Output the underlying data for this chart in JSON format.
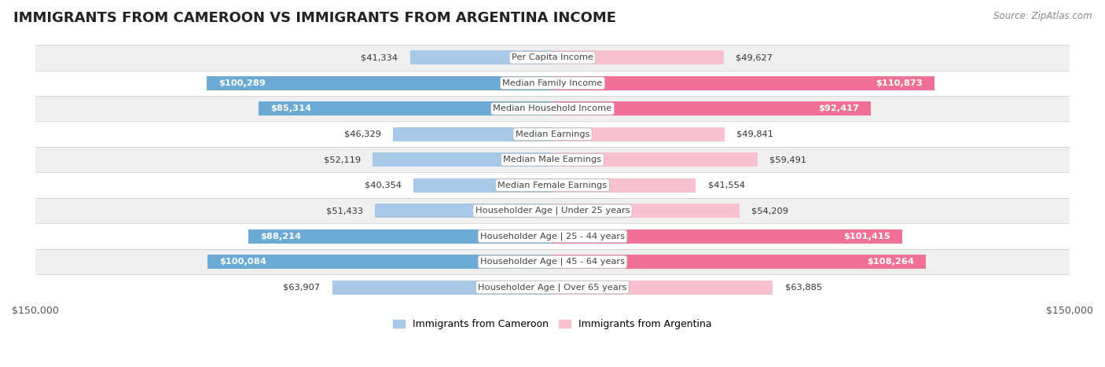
{
  "title": "IMMIGRANTS FROM CAMEROON VS IMMIGRANTS FROM ARGENTINA INCOME",
  "source": "Source: ZipAtlas.com",
  "categories": [
    "Per Capita Income",
    "Median Family Income",
    "Median Household Income",
    "Median Earnings",
    "Median Male Earnings",
    "Median Female Earnings",
    "Householder Age | Under 25 years",
    "Householder Age | 25 - 44 years",
    "Householder Age | 45 - 64 years",
    "Householder Age | Over 65 years"
  ],
  "cameroon_values": [
    41334,
    100289,
    85314,
    46329,
    52119,
    40354,
    51433,
    88214,
    100084,
    63907
  ],
  "argentina_values": [
    49627,
    110873,
    92417,
    49841,
    59491,
    41554,
    54209,
    101415,
    108264,
    63885
  ],
  "cameroon_labels": [
    "$41,334",
    "$100,289",
    "$85,314",
    "$46,329",
    "$52,119",
    "$40,354",
    "$51,433",
    "$88,214",
    "$100,084",
    "$63,907"
  ],
  "argentina_labels": [
    "$49,627",
    "$110,873",
    "$92,417",
    "$49,841",
    "$59,491",
    "$41,554",
    "$54,209",
    "$101,415",
    "$108,264",
    "$63,885"
  ],
  "color_cameroon_light": "#a8c8e8",
  "color_cameroon_dark": "#6aaad4",
  "color_argentina_light": "#f9c0d0",
  "color_argentina_dark": "#f07098",
  "max_value": 150000,
  "label_cameroon": "Immigrants from Cameroon",
  "label_argentina": "Immigrants from Argentina",
  "background_row_light": "#efefef",
  "background_row_white": "#ffffff",
  "bar_height": 0.55,
  "title_fontsize": 13,
  "source_fontsize": 8.5,
  "cat_label_fontsize": 8.2,
  "value_fontsize": 8.2,
  "inside_threshold": 70000,
  "cam_inside_indices": [
    1,
    2,
    7,
    8
  ],
  "arg_inside_indices": [
    1,
    2,
    7,
    8
  ]
}
